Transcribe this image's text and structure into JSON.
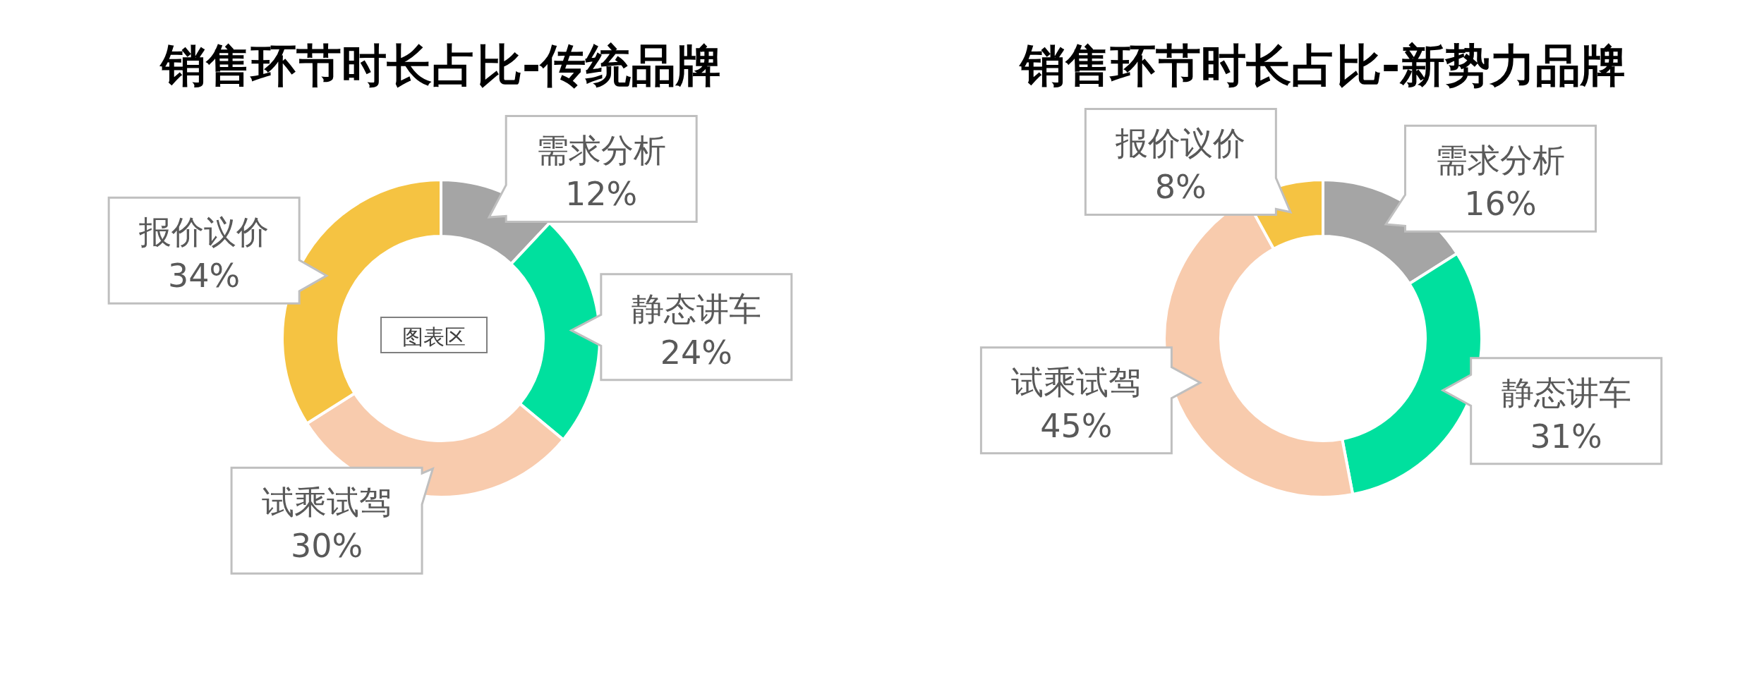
{
  "chart_data": [
    {
      "type": "donut",
      "title": "销售环节时长占比-传统品牌",
      "categories": [
        "需求分析",
        "静态讲车",
        "试乘试驾",
        "报价议价"
      ],
      "values": [
        12,
        24,
        30,
        34
      ],
      "value_labels": [
        "12%",
        "24%",
        "30%",
        "34%"
      ],
      "colors": [
        "#a5a5a5",
        "#00e09e",
        "#f8cbad",
        "#f5c342"
      ],
      "data_labels": true,
      "annotations": [
        "图表区"
      ]
    },
    {
      "type": "donut",
      "title": "销售环节时长占比-新势力品牌",
      "categories": [
        "需求分析",
        "静态讲车",
        "试乘试驾",
        "报价议价"
      ],
      "values": [
        16,
        31,
        45,
        8
      ],
      "value_labels": [
        "16%",
        "31%",
        "45%",
        "8%"
      ],
      "colors": [
        "#a5a5a5",
        "#00e09e",
        "#f8cbad",
        "#f5c342"
      ],
      "data_labels": true
    }
  ]
}
